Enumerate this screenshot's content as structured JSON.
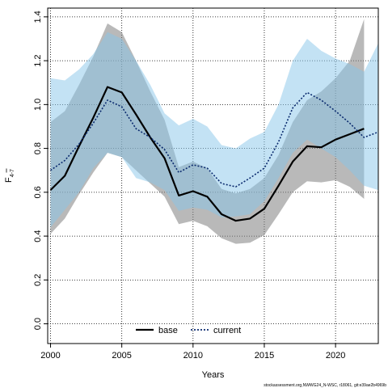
{
  "chart_data": {
    "type": "line",
    "xlabel": "Years",
    "ylabel_main": "F",
    "ylabel_sub": "4-7",
    "xlim": [
      1999.8,
      2023.0
    ],
    "ylim": [
      -0.09,
      1.44
    ],
    "xticks": [
      2000,
      2005,
      2010,
      2015,
      2020
    ],
    "yticks": [
      0.0,
      0.2,
      0.4,
      0.6,
      0.8,
      1.0,
      1.2,
      1.4
    ],
    "ytick_labels": [
      "0.0",
      "0.2",
      "0.4",
      "0.6",
      "0.8",
      "1.0",
      "1.2",
      "1.4"
    ],
    "grid": true,
    "legend_position": "bottom",
    "series": [
      {
        "name": "base",
        "color": "#000000",
        "band_color": "#808080",
        "line_style": "solid",
        "x": [
          2000,
          2001,
          2002,
          2003,
          2004,
          2005,
          2006,
          2007,
          2008,
          2009,
          2010,
          2011,
          2012,
          2013,
          2014,
          2015,
          2016,
          2017,
          2018,
          2019,
          2020,
          2021,
          2022
        ],
        "y": [
          0.61,
          0.675,
          0.81,
          0.94,
          1.08,
          1.055,
          0.955,
          0.85,
          0.755,
          0.585,
          0.605,
          0.58,
          0.5,
          0.47,
          0.48,
          0.525,
          0.63,
          0.74,
          0.81,
          0.805,
          0.84,
          0.865,
          0.89
        ],
        "upper": [
          0.92,
          0.97,
          1.09,
          1.22,
          1.37,
          1.33,
          1.2,
          1.06,
          0.93,
          0.715,
          0.74,
          0.71,
          0.615,
          0.595,
          0.615,
          0.665,
          0.77,
          0.92,
          1.02,
          1.06,
          1.12,
          1.2,
          1.39
        ],
        "lower": [
          0.41,
          0.48,
          0.59,
          0.69,
          0.78,
          0.76,
          0.7,
          0.64,
          0.58,
          0.455,
          0.47,
          0.445,
          0.39,
          0.365,
          0.37,
          0.405,
          0.5,
          0.6,
          0.65,
          0.645,
          0.655,
          0.625,
          0.57
        ]
      },
      {
        "name": "current",
        "color": "#0a2a6e",
        "band_color": "#87c5ea",
        "line_style": "dotted",
        "x": [
          2000,
          2001,
          2002,
          2003,
          2004,
          2005,
          2006,
          2007,
          2008,
          2009,
          2010,
          2011,
          2012,
          2013,
          2014,
          2015,
          2016,
          2017,
          2018,
          2019,
          2020,
          2021,
          2022,
          2023
        ],
        "y": [
          0.7,
          0.745,
          0.82,
          0.915,
          1.02,
          0.99,
          0.89,
          0.85,
          0.795,
          0.69,
          0.725,
          0.71,
          0.64,
          0.625,
          0.665,
          0.71,
          0.83,
          0.985,
          1.055,
          1.02,
          0.97,
          0.915,
          0.85,
          0.875
        ],
        "upper": [
          1.12,
          1.11,
          1.16,
          1.23,
          1.33,
          1.3,
          1.2,
          1.09,
          0.96,
          0.905,
          0.935,
          0.9,
          0.815,
          0.8,
          0.845,
          0.875,
          1.0,
          1.2,
          1.3,
          1.245,
          1.21,
          1.185,
          1.15,
          1.28
        ],
        "lower": [
          0.44,
          0.52,
          0.6,
          0.71,
          0.78,
          0.76,
          0.665,
          0.645,
          0.61,
          0.515,
          0.53,
          0.52,
          0.485,
          0.49,
          0.5,
          0.56,
          0.665,
          0.78,
          0.84,
          0.8,
          0.76,
          0.7,
          0.63,
          0.61
        ]
      }
    ],
    "footer": "stockassessment.org,NWWG24_N-WSC, r18061, git:e39ae2b4969b"
  }
}
